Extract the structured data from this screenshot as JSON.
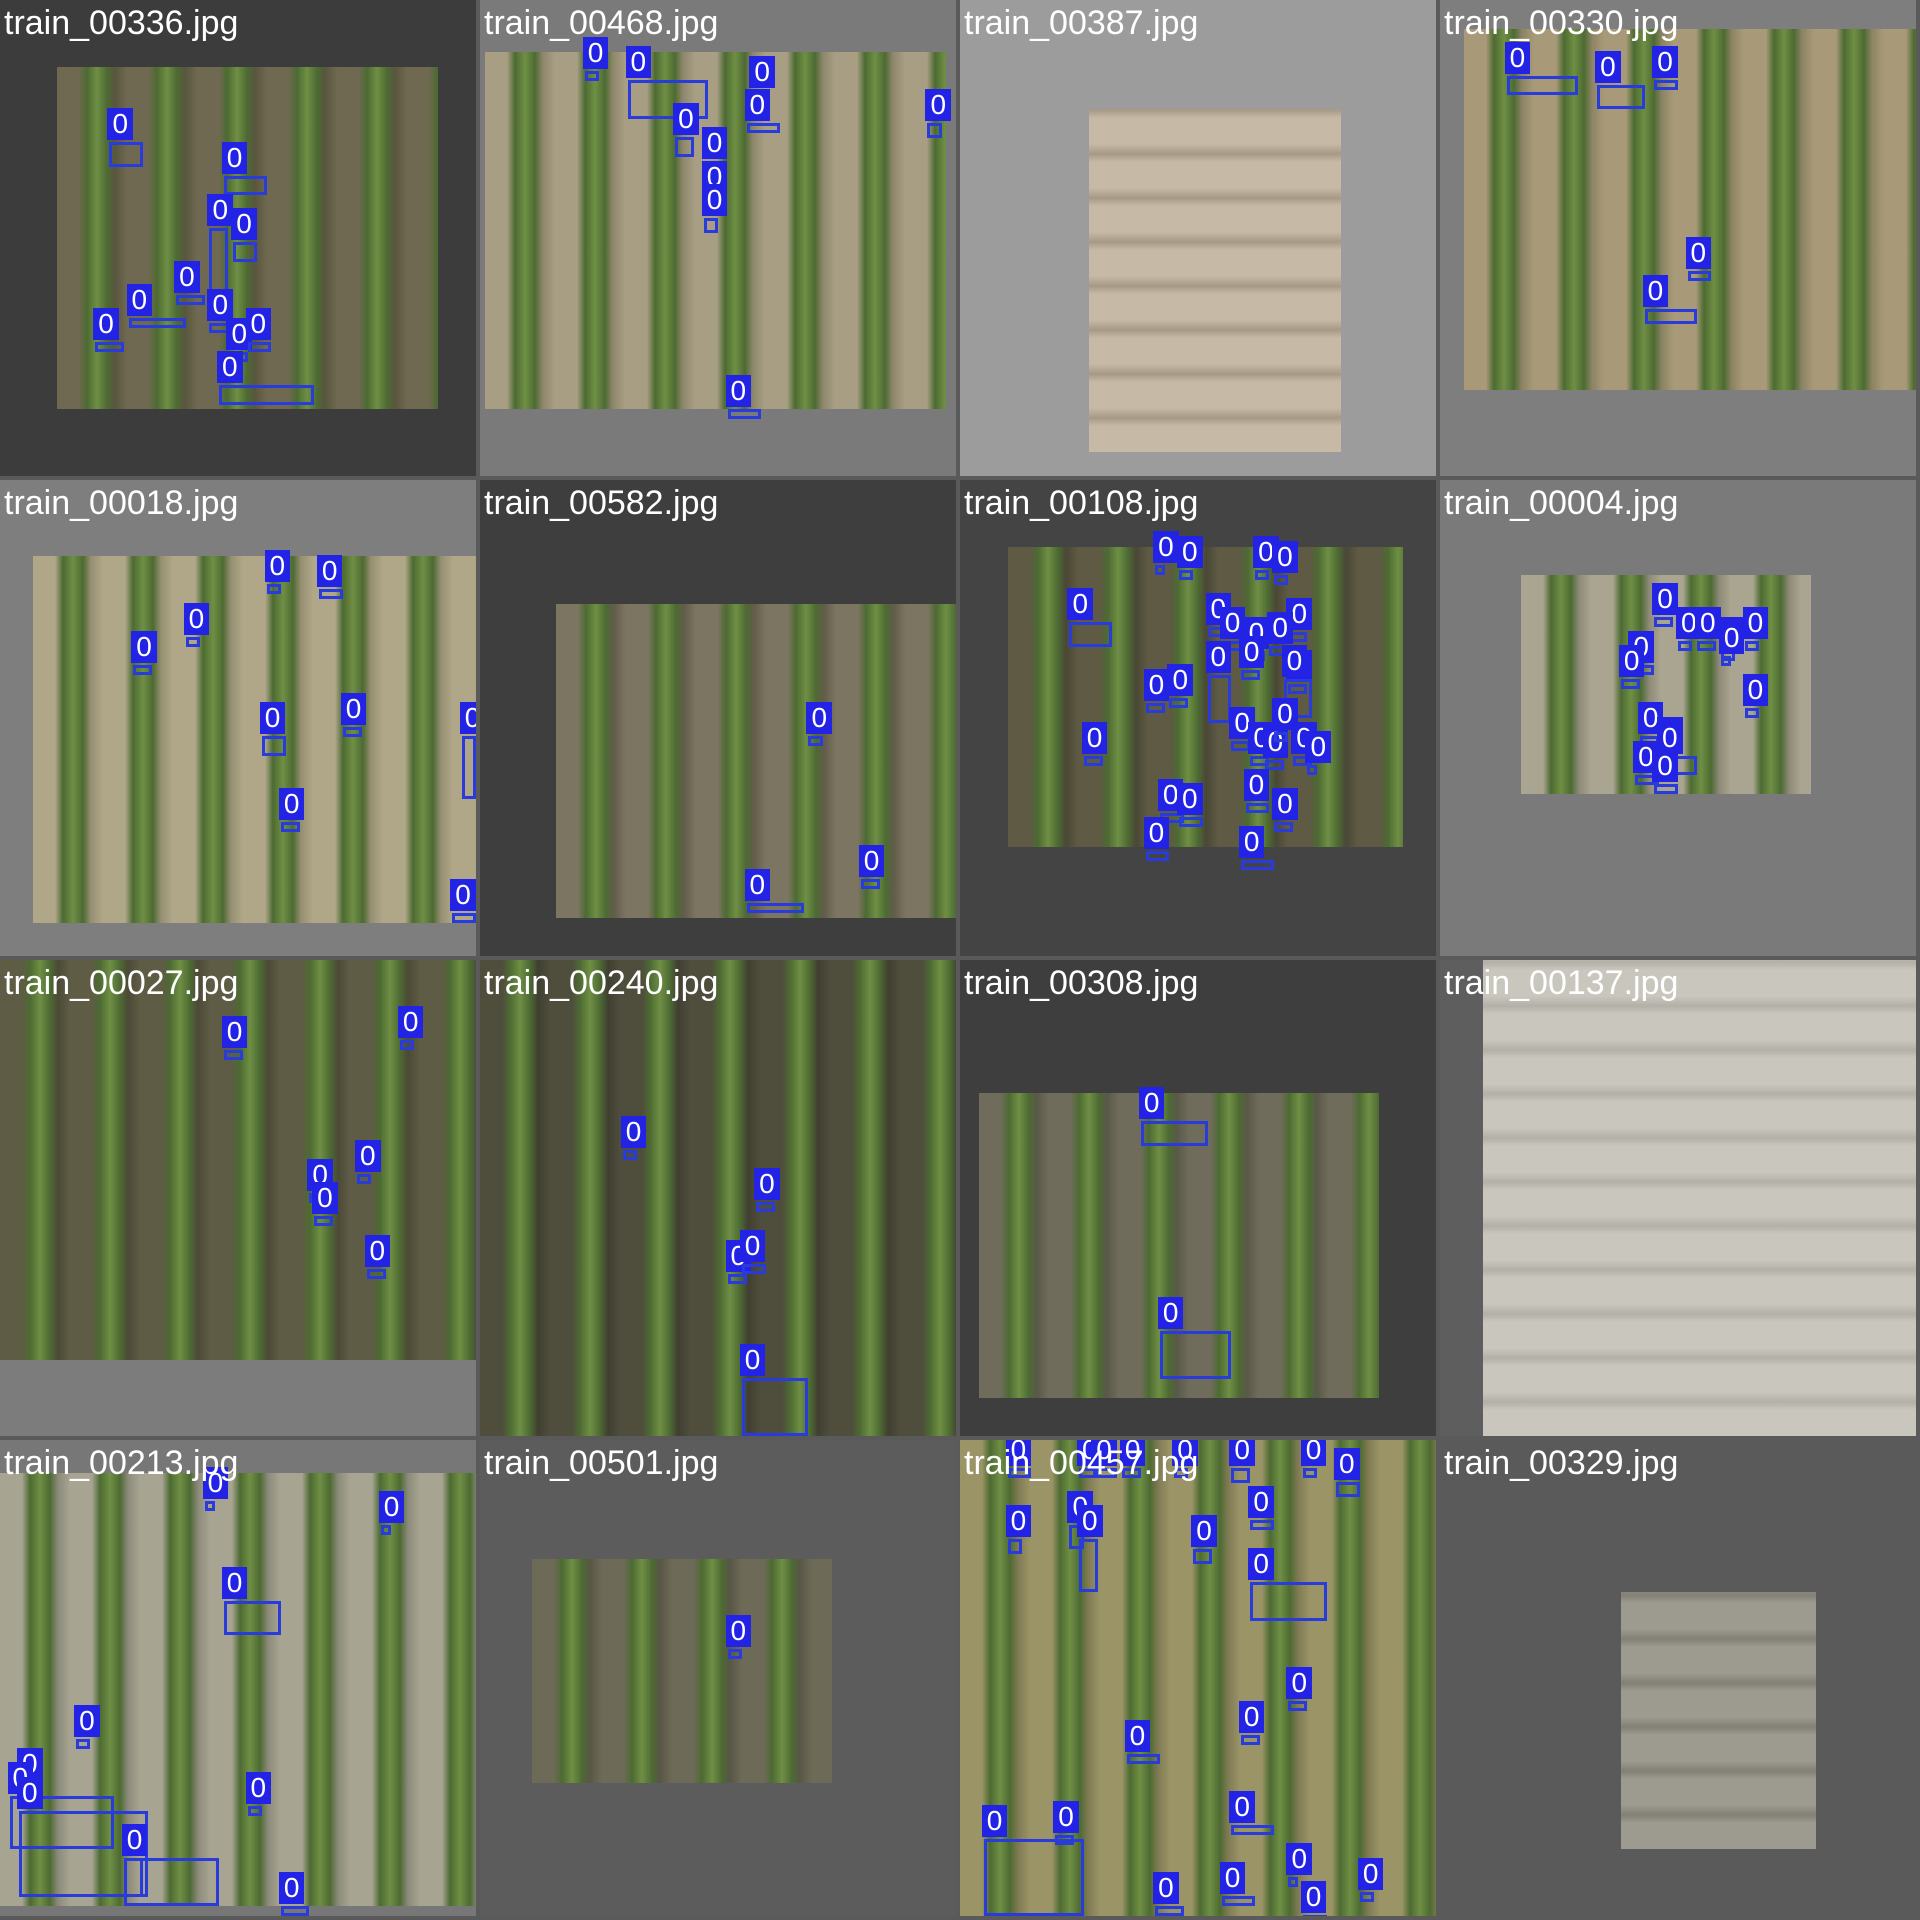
{
  "colors": {
    "box": "#2a3bdc",
    "label_bg": "#2323e6",
    "title_text": "#ffffff"
  },
  "tiles": [
    {
      "title": "train_00336.jpg",
      "bg": "#3c3c3c",
      "photo": [
        0.12,
        0.14,
        0.92,
        0.86
      ],
      "tone": [
        "#6e6950",
        "#59563f"
      ],
      "rows": "vertical",
      "label": "0",
      "boxes": [
        [
          0.23,
          0.24,
          0.3,
          0.35
        ],
        [
          0.47,
          0.31,
          0.56,
          0.41
        ],
        [
          0.44,
          0.42,
          0.48,
          0.62
        ],
        [
          0.49,
          0.45,
          0.54,
          0.55
        ],
        [
          0.27,
          0.61,
          0.39,
          0.67
        ],
        [
          0.37,
          0.56,
          0.43,
          0.62
        ],
        [
          0.2,
          0.66,
          0.26,
          0.72
        ],
        [
          0.44,
          0.62,
          0.49,
          0.7
        ],
        [
          0.48,
          0.68,
          0.52,
          0.74
        ],
        [
          0.52,
          0.66,
          0.57,
          0.73
        ],
        [
          0.46,
          0.75,
          0.66,
          0.85
        ]
      ]
    },
    {
      "title": "train_00468.jpg",
      "bg": "#7a7a7a",
      "photo": [
        0.01,
        0.11,
        0.98,
        0.86
      ],
      "tone": [
        "#a89e83",
        "#8f876c"
      ],
      "rows": "vertical",
      "label": "0",
      "boxes": [
        [
          0.22,
          0.09,
          0.25,
          0.13
        ],
        [
          0.31,
          0.11,
          0.48,
          0.25
        ],
        [
          0.57,
          0.13,
          0.61,
          0.2
        ],
        [
          0.56,
          0.2,
          0.63,
          0.27
        ],
        [
          0.41,
          0.23,
          0.45,
          0.33
        ],
        [
          0.47,
          0.28,
          0.51,
          0.38
        ],
        [
          0.47,
          0.35,
          0.51,
          0.42
        ],
        [
          0.47,
          0.4,
          0.5,
          0.49
        ],
        [
          0.94,
          0.2,
          0.97,
          0.29
        ],
        [
          0.52,
          0.8,
          0.59,
          0.85
        ]
      ]
    },
    {
      "title": "train_00387.jpg",
      "bg": "#9c9c9c",
      "photo": [
        0.27,
        0.23,
        0.8,
        0.95
      ],
      "tone": [
        "#c6baa6",
        "#a69a86"
      ],
      "rows": "horizontal",
      "label": "0",
      "boxes": []
    },
    {
      "title": "train_00330.jpg",
      "bg": "#7e7e7e",
      "photo": [
        0.05,
        0.06,
        1.0,
        0.82
      ],
      "tone": [
        "#a89a78",
        "#8c8464"
      ],
      "rows": "vertical",
      "label": "0",
      "boxes": [
        [
          0.14,
          0.1,
          0.29,
          0.2
        ],
        [
          0.33,
          0.12,
          0.43,
          0.23
        ],
        [
          0.45,
          0.11,
          0.5,
          0.17
        ],
        [
          0.52,
          0.51,
          0.57,
          0.56
        ],
        [
          0.43,
          0.59,
          0.54,
          0.68
        ]
      ]
    },
    {
      "title": "train_00018.jpg",
      "bg": "#7e7e7e",
      "photo": [
        0.07,
        0.16,
        1.0,
        0.93
      ],
      "tone": [
        "#b0a789",
        "#978f72"
      ],
      "rows": "vertical",
      "label": "0",
      "boxes": [
        [
          0.56,
          0.16,
          0.59,
          0.19
        ],
        [
          0.67,
          0.17,
          0.72,
          0.24
        ],
        [
          0.39,
          0.27,
          0.42,
          0.29
        ],
        [
          0.28,
          0.33,
          0.32,
          0.4
        ],
        [
          0.55,
          0.48,
          0.6,
          0.58
        ],
        [
          0.72,
          0.46,
          0.76,
          0.5
        ],
        [
          0.97,
          0.48,
          1.0,
          0.67
        ],
        [
          0.59,
          0.66,
          0.63,
          0.7
        ],
        [
          0.95,
          0.85,
          1.0,
          0.9
        ]
      ]
    },
    {
      "title": "train_00582.jpg",
      "bg": "#3e3e3e",
      "photo": [
        0.16,
        0.26,
        1.0,
        0.92
      ],
      "tone": [
        "#7c7561",
        "#625c4b"
      ],
      "rows": "vertical",
      "label": "0",
      "boxes": [
        [
          0.69,
          0.48,
          0.72,
          0.5
        ],
        [
          0.56,
          0.83,
          0.68,
          0.91
        ],
        [
          0.8,
          0.78,
          0.84,
          0.8
        ]
      ]
    },
    {
      "title": "train_00108.jpg",
      "bg": "#444444",
      "photo": [
        0.1,
        0.14,
        0.93,
        0.77
      ],
      "tone": [
        "#5e5a44",
        "#4a4736"
      ],
      "rows": "vertical",
      "label": "0",
      "boxes": [
        [
          0.23,
          0.24,
          0.32,
          0.35
        ],
        [
          0.41,
          0.12,
          0.43,
          0.16
        ],
        [
          0.46,
          0.13,
          0.49,
          0.18
        ],
        [
          0.62,
          0.13,
          0.65,
          0.16
        ],
        [
          0.66,
          0.14,
          0.69,
          0.18
        ],
        [
          0.69,
          0.26,
          0.73,
          0.31
        ],
        [
          0.52,
          0.25,
          0.56,
          0.3
        ],
        [
          0.55,
          0.28,
          0.6,
          0.34
        ],
        [
          0.6,
          0.3,
          0.64,
          0.35
        ],
        [
          0.59,
          0.34,
          0.63,
          0.41
        ],
        [
          0.65,
          0.29,
          0.7,
          0.37
        ],
        [
          0.69,
          0.37,
          0.73,
          0.41
        ],
        [
          0.52,
          0.35,
          0.57,
          0.51
        ],
        [
          0.39,
          0.41,
          0.43,
          0.44
        ],
        [
          0.44,
          0.4,
          0.48,
          0.43
        ],
        [
          0.68,
          0.36,
          0.74,
          0.5
        ],
        [
          0.26,
          0.52,
          0.3,
          0.57
        ],
        [
          0.57,
          0.49,
          0.61,
          0.53
        ],
        [
          0.61,
          0.52,
          0.65,
          0.56
        ],
        [
          0.64,
          0.53,
          0.68,
          0.57
        ],
        [
          0.66,
          0.47,
          0.69,
          0.51
        ],
        [
          0.7,
          0.52,
          0.74,
          0.56
        ],
        [
          0.73,
          0.54,
          0.75,
          0.62
        ],
        [
          0.42,
          0.64,
          0.47,
          0.68
        ],
        [
          0.46,
          0.65,
          0.51,
          0.72
        ],
        [
          0.39,
          0.72,
          0.44,
          0.75
        ],
        [
          0.6,
          0.62,
          0.65,
          0.68
        ],
        [
          0.66,
          0.66,
          0.7,
          0.7
        ],
        [
          0.59,
          0.74,
          0.66,
          0.76
        ]
      ]
    },
    {
      "title": "train_00004.jpg",
      "bg": "#7a7a7a",
      "photo": [
        0.17,
        0.2,
        0.78,
        0.66
      ],
      "tone": [
        "#aaa590",
        "#8d8a77"
      ],
      "rows": "vertical",
      "label": "0",
      "boxes": [
        [
          0.45,
          0.23,
          0.49,
          0.29
        ],
        [
          0.5,
          0.28,
          0.53,
          0.31
        ],
        [
          0.54,
          0.28,
          0.58,
          0.32
        ],
        [
          0.59,
          0.3,
          0.62,
          0.34
        ],
        [
          0.64,
          0.28,
          0.67,
          0.34
        ],
        [
          0.59,
          0.31,
          0.61,
          0.35
        ],
        [
          0.4,
          0.33,
          0.45,
          0.37
        ],
        [
          0.38,
          0.36,
          0.42,
          0.42
        ],
        [
          0.64,
          0.42,
          0.67,
          0.45
        ],
        [
          0.42,
          0.48,
          0.46,
          0.53
        ],
        [
          0.46,
          0.51,
          0.5,
          0.56
        ],
        [
          0.46,
          0.52,
          0.54,
          0.62
        ],
        [
          0.41,
          0.56,
          0.46,
          0.61
        ],
        [
          0.45,
          0.58,
          0.5,
          0.63
        ]
      ]
    },
    {
      "title": "train_00027.jpg",
      "bg": "#7c7c7c",
      "photo": [
        0.0,
        0.0,
        1.0,
        0.84
      ],
      "tone": [
        "#5e5c44",
        "#4c4a37"
      ],
      "rows": "vertical",
      "label": "0",
      "boxes": [
        [
          0.47,
          0.13,
          0.51,
          0.17
        ],
        [
          0.84,
          0.11,
          0.87,
          0.15
        ],
        [
          0.65,
          0.43,
          0.7,
          0.5
        ],
        [
          0.66,
          0.48,
          0.7,
          0.53
        ],
        [
          0.75,
          0.39,
          0.78,
          0.42
        ],
        [
          0.77,
          0.59,
          0.81,
          0.64
        ]
      ]
    },
    {
      "title": "train_00240.jpg",
      "bg": "#3c3c3c",
      "photo": [
        0.0,
        0.0,
        1.0,
        1.0
      ],
      "tone": [
        "#4f4d3c",
        "#403f31"
      ],
      "rows": "vertical",
      "label": "0",
      "boxes": [
        [
          0.3,
          0.34,
          0.33,
          0.38
        ],
        [
          0.58,
          0.45,
          0.62,
          0.47
        ],
        [
          0.52,
          0.6,
          0.56,
          0.65
        ],
        [
          0.55,
          0.58,
          0.6,
          0.62
        ],
        [
          0.55,
          0.82,
          0.69,
          1.0
        ]
      ]
    },
    {
      "title": "train_00308.jpg",
      "bg": "#3e3e3e",
      "photo": [
        0.04,
        0.28,
        0.88,
        0.92
      ],
      "tone": [
        "#6f6c5b",
        "#5a5849"
      ],
      "rows": "vertical",
      "label": "0",
      "boxes": [
        [
          0.38,
          0.28,
          0.52,
          0.39
        ],
        [
          0.42,
          0.72,
          0.57,
          0.88
        ]
      ]
    },
    {
      "title": "train_00137.jpg",
      "bg": "#5e5e5e",
      "photo": [
        0.09,
        0.0,
        1.0,
        1.0
      ],
      "tone": [
        "#c8c6bd",
        "#b2b0a7"
      ],
      "rows": "horizontal",
      "label": "0",
      "boxes": []
    },
    {
      "title": "train_00213.jpg",
      "bg": "#777777",
      "photo": [
        0.0,
        0.07,
        1.0,
        0.98
      ],
      "tone": [
        "#a7a491",
        "#8c8a7a"
      ],
      "rows": "vertical",
      "label": "0",
      "boxes": [
        [
          0.43,
          0.07,
          0.45,
          0.14
        ],
        [
          0.8,
          0.12,
          0.82,
          0.17
        ],
        [
          0.47,
          0.28,
          0.59,
          0.41
        ],
        [
          0.16,
          0.57,
          0.19,
          0.61
        ],
        [
          0.04,
          0.66,
          0.07,
          0.7
        ],
        [
          0.02,
          0.69,
          0.24,
          0.86
        ],
        [
          0.04,
          0.72,
          0.31,
          0.96
        ],
        [
          0.26,
          0.82,
          0.3,
          0.96
        ],
        [
          0.26,
          0.82,
          0.46,
          0.98
        ],
        [
          0.52,
          0.71,
          0.55,
          0.74
        ],
        [
          0.59,
          0.92,
          0.65,
          0.98
        ]
      ]
    },
    {
      "title": "train_00501.jpg",
      "bg": "#5c5c5c",
      "photo": [
        0.11,
        0.25,
        0.74,
        0.72
      ],
      "tone": [
        "#6d6a57",
        "#585646"
      ],
      "rows": "vertical",
      "label": "0",
      "boxes": [
        [
          0.52,
          0.38,
          0.55,
          0.42
        ]
      ]
    },
    {
      "title": "train_00457.jpg",
      "bg": "#7a7a7a",
      "photo": [
        0.0,
        0.0,
        1.0,
        1.0
      ],
      "tone": [
        "#9a9467",
        "#7f7a53"
      ],
      "rows": "vertical",
      "label": "0",
      "boxes": [
        [
          0.1,
          0.0,
          0.15,
          0.08
        ],
        [
          0.25,
          0.0,
          0.29,
          0.05
        ],
        [
          0.28,
          0.0,
          0.33,
          0.08
        ],
        [
          0.34,
          0.0,
          0.38,
          0.06
        ],
        [
          0.45,
          0.0,
          0.48,
          0.06
        ],
        [
          0.57,
          0.0,
          0.61,
          0.09
        ],
        [
          0.72,
          0.0,
          0.75,
          0.06
        ],
        [
          0.79,
          0.03,
          0.84,
          0.12
        ],
        [
          0.1,
          0.15,
          0.13,
          0.24
        ],
        [
          0.23,
          0.12,
          0.26,
          0.23
        ],
        [
          0.25,
          0.15,
          0.29,
          0.32
        ],
        [
          0.49,
          0.17,
          0.53,
          0.26
        ],
        [
          0.61,
          0.11,
          0.66,
          0.17
        ],
        [
          0.61,
          0.24,
          0.77,
          0.38
        ],
        [
          0.69,
          0.49,
          0.73,
          0.52
        ],
        [
          0.35,
          0.6,
          0.42,
          0.66
        ],
        [
          0.59,
          0.56,
          0.63,
          0.58
        ],
        [
          0.2,
          0.77,
          0.24,
          0.8
        ],
        [
          0.57,
          0.75,
          0.66,
          0.82
        ],
        [
          0.05,
          0.78,
          0.26,
          1.0
        ],
        [
          0.41,
          0.92,
          0.47,
          0.99
        ],
        [
          0.55,
          0.9,
          0.62,
          0.97
        ],
        [
          0.69,
          0.86,
          0.71,
          0.89
        ],
        [
          0.72,
          0.94,
          0.77,
          1.0
        ],
        [
          0.84,
          0.89,
          0.87,
          0.93
        ]
      ]
    },
    {
      "title": "train_00329.jpg",
      "bg": "#5a5a5a",
      "photo": [
        0.38,
        0.32,
        0.79,
        0.86
      ],
      "tone": [
        "#9d9a8f",
        "#828077"
      ],
      "rows": "horizontal",
      "label": "0",
      "boxes": []
    }
  ]
}
